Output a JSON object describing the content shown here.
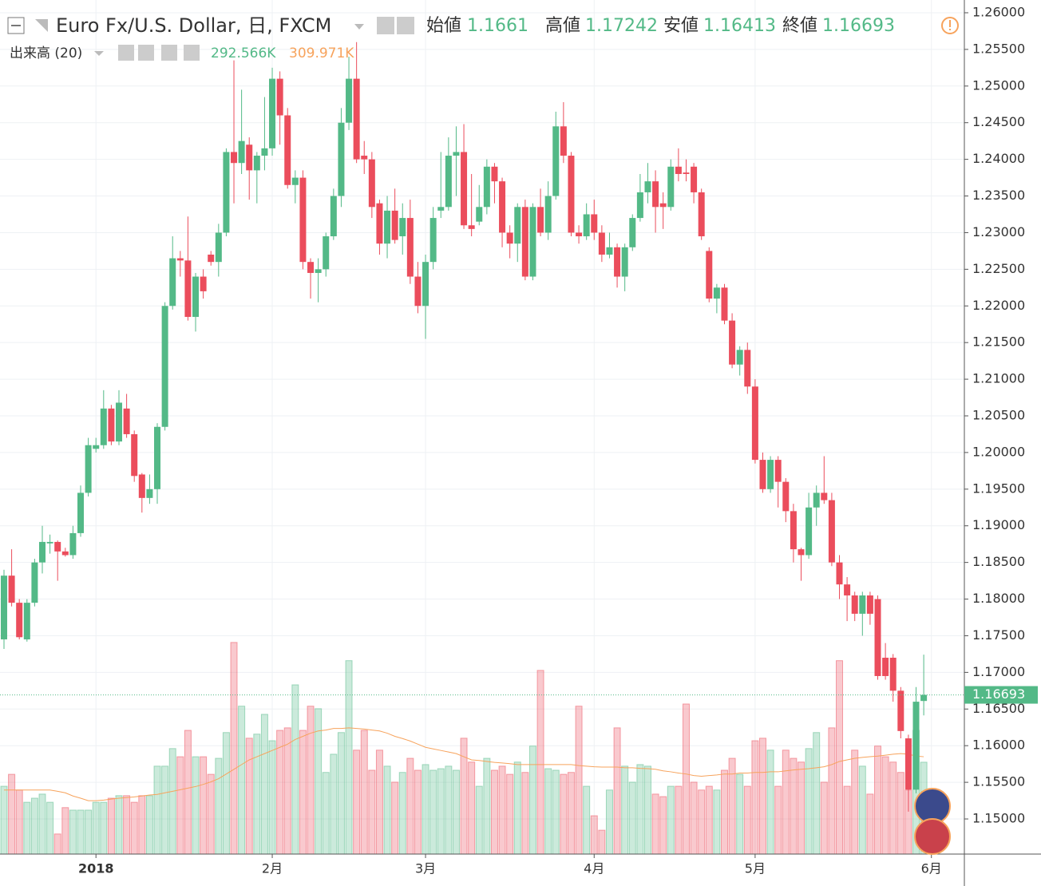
{
  "chart_data": {
    "type": "candlestick",
    "title": "Euro Fx/U.S. Dollar, 日, FXCM",
    "open_label": "始値",
    "high_label": "高値",
    "low_label": "安値",
    "close_label": "終値",
    "volume_title": "出来高 (20)",
    "volume_last_label": "292.566K",
    "volume_ma_last_label": "309.971K",
    "up_color": "#53b987",
    "down_color": "#eb4d5c",
    "ma_color": "#f7a35c",
    "open": [
      1.1745,
      1.1832,
      1.1795,
      1.1745,
      1.1795,
      1.185,
      1.1876,
      1.1878,
      1.1865,
      1.186,
      1.189,
      1.1945,
      1.2005,
      1.201,
      1.206,
      1.2015,
      1.206,
      1.2025,
      1.197,
      1.1938,
      1.195,
      1.2035,
      1.22,
      1.2265,
      1.2262,
      1.2185,
      1.224,
      1.227,
      1.226,
      1.23,
      1.241,
      1.2395,
      1.242,
      1.2385,
      1.2405,
      1.2415,
      1.251,
      1.246,
      1.2365,
      1.2375,
      1.226,
      1.2245,
      1.225,
      1.2295,
      1.235,
      1.245,
      1.251,
      1.2405,
      1.24,
      1.234,
      1.2285,
      1.233,
      1.2295,
      1.232,
      1.224,
      1.22,
      1.226,
      1.233,
      1.2335,
      1.2405,
      1.241,
      1.231,
      1.2315,
      1.2335,
      1.239,
      1.237,
      1.23,
      1.2285,
      1.2335,
      1.224,
      1.2335,
      1.23,
      1.235,
      1.2445,
      1.2405,
      1.23,
      1.2295,
      1.2325,
      1.23,
      1.227,
      1.228,
      1.224,
      1.228,
      1.232,
      1.2355,
      1.237,
      1.234,
      1.2335,
      1.239,
      1.2382,
      1.239,
      1.2355,
      1.2275,
      1.221,
      1.2225,
      1.218,
      1.212,
      1.214,
      1.209,
      1.199,
      1.195,
      1.199,
      1.196,
      1.192,
      1.1868,
      1.186,
      1.1925,
      1.1945,
      1.1935,
      1.185,
      1.182,
      1.1805,
      1.178,
      1.1805,
      1.18,
      1.172,
      1.172,
      1.1675,
      1.161,
      1.154,
      1.1661
    ],
    "high": [
      1.184,
      1.1868,
      1.18,
      1.18,
      1.1855,
      1.19,
      1.1888,
      1.188,
      1.187,
      1.19,
      1.1955,
      1.202,
      1.202,
      1.2085,
      1.2065,
      1.2085,
      1.208,
      1.203,
      1.1972,
      1.197,
      1.204,
      1.2205,
      1.2295,
      1.2275,
      1.2322,
      1.2245,
      1.225,
      1.2275,
      1.2312,
      1.2415,
      1.2535,
      1.2495,
      1.243,
      1.241,
      1.2485,
      1.2525,
      1.252,
      1.247,
      1.2385,
      1.2385,
      1.2265,
      1.2265,
      1.23,
      1.236,
      1.247,
      1.254,
      1.256,
      1.2425,
      1.241,
      1.2345,
      1.235,
      1.236,
      1.234,
      1.2345,
      1.226,
      1.227,
      1.2335,
      1.241,
      1.243,
      1.2445,
      1.2448,
      1.238,
      1.2365,
      1.24,
      1.2395,
      1.2375,
      1.231,
      1.234,
      1.2345,
      1.234,
      1.236,
      1.237,
      1.2465,
      1.2478,
      1.241,
      1.231,
      1.234,
      1.2345,
      1.231,
      1.23,
      1.2285,
      1.2285,
      1.2325,
      1.238,
      1.2395,
      1.2385,
      1.2355,
      1.24,
      1.2415,
      1.24,
      1.2395,
      1.236,
      1.228,
      1.223,
      1.223,
      1.219,
      1.2145,
      1.215,
      1.21,
      1.2,
      1.1995,
      1.1995,
      1.1965,
      1.193,
      1.187,
      1.1945,
      1.1955,
      1.1995,
      1.1945,
      1.186,
      1.183,
      1.181,
      1.181,
      1.181,
      1.1805,
      1.174,
      1.1725,
      1.168,
      1.1615,
      1.168,
      1.17242
    ],
    "low": [
      1.1732,
      1.179,
      1.1745,
      1.1742,
      1.179,
      1.1835,
      1.1862,
      1.1825,
      1.1858,
      1.1855,
      1.1885,
      1.194,
      1.2,
      1.2005,
      1.201,
      1.201,
      1.202,
      1.196,
      1.1918,
      1.193,
      1.193,
      1.203,
      1.2195,
      1.224,
      1.218,
      1.2165,
      1.221,
      1.2255,
      1.224,
      1.2295,
      1.234,
      1.238,
      1.2345,
      1.234,
      1.2385,
      1.2405,
      1.242,
      1.236,
      1.234,
      1.225,
      1.221,
      1.2205,
      1.224,
      1.229,
      1.2335,
      1.244,
      1.2395,
      1.238,
      1.232,
      1.227,
      1.2265,
      1.2285,
      1.227,
      1.223,
      1.219,
      1.2155,
      1.225,
      1.232,
      1.233,
      1.235,
      1.2305,
      1.2295,
      1.231,
      1.2325,
      1.234,
      1.228,
      1.2265,
      1.226,
      1.2235,
      1.2235,
      1.2295,
      1.229,
      1.2345,
      1.2395,
      1.2295,
      1.2285,
      1.229,
      1.229,
      1.226,
      1.2265,
      1.2225,
      1.222,
      1.2275,
      1.2315,
      1.234,
      1.23,
      1.2305,
      1.233,
      1.237,
      1.237,
      1.234,
      1.229,
      1.2205,
      1.219,
      1.2175,
      1.2115,
      1.2105,
      1.208,
      1.1985,
      1.1945,
      1.1945,
      1.1925,
      1.1905,
      1.185,
      1.1825,
      1.1855,
      1.19,
      1.193,
      1.1845,
      1.18,
      1.177,
      1.177,
      1.175,
      1.1765,
      1.169,
      1.169,
      1.166,
      1.161,
      1.151,
      1.1535,
      1.16413
    ],
    "close": [
      1.1832,
      1.1795,
      1.1748,
      1.1795,
      1.185,
      1.1878,
      1.1878,
      1.1865,
      1.186,
      1.189,
      1.1945,
      1.201,
      1.201,
      1.206,
      1.2015,
      1.2068,
      1.2025,
      1.1968,
      1.1938,
      1.195,
      1.2035,
      1.22,
      1.2265,
      1.2262,
      1.2185,
      1.224,
      1.222,
      1.226,
      1.23,
      1.241,
      1.2395,
      1.2425,
      1.2385,
      1.2405,
      1.2415,
      1.251,
      1.246,
      1.2365,
      1.2375,
      1.226,
      1.2245,
      1.225,
      1.2295,
      1.235,
      1.245,
      1.251,
      1.24,
      1.24,
      1.2335,
      1.2285,
      1.233,
      1.229,
      1.232,
      1.224,
      1.22,
      1.226,
      1.232,
      1.2335,
      1.2405,
      1.241,
      1.231,
      1.2305,
      1.2335,
      1.239,
      1.237,
      1.23,
      1.2285,
      1.2335,
      1.224,
      1.2335,
      1.23,
      1.235,
      1.2445,
      1.2405,
      1.23,
      1.2295,
      1.2325,
      1.23,
      1.227,
      1.228,
      1.224,
      1.228,
      1.232,
      1.2355,
      1.237,
      1.2335,
      1.2335,
      1.239,
      1.238,
      1.238,
      1.2355,
      1.2295,
      1.221,
      1.2225,
      1.218,
      1.212,
      1.214,
      1.209,
      1.199,
      1.195,
      1.199,
      1.196,
      1.192,
      1.1868,
      1.186,
      1.1925,
      1.1945,
      1.1935,
      1.185,
      1.182,
      1.1805,
      1.178,
      1.1805,
      1.178,
      1.1695,
      1.1695,
      1.1675,
      1.162,
      1.154,
      1.166,
      1.16693
    ],
    "volume": [
      216,
      254,
      204,
      165,
      178,
      191,
      165,
      64,
      148,
      140,
      140,
      140,
      165,
      165,
      178,
      186,
      186,
      165,
      186,
      186,
      280,
      280,
      336,
      310,
      394,
      310,
      310,
      254,
      305,
      387,
      674,
      471,
      369,
      382,
      445,
      361,
      394,
      402,
      539,
      394,
      471,
      463,
      260,
      318,
      387,
      616,
      331,
      394,
      267,
      331,
      280,
      229,
      260,
      305,
      267,
      285,
      267,
      272,
      280,
      267,
      369,
      293,
      216,
      305,
      267,
      280,
      254,
      293,
      260,
      344,
      585,
      272,
      267,
      254,
      260,
      471,
      216,
      122,
      76,
      204,
      402,
      280,
      229,
      285,
      280,
      191,
      183,
      216,
      216,
      478,
      229,
      204,
      216,
      204,
      267,
      305,
      254,
      216,
      361,
      369,
      331,
      216,
      331,
      305,
      293,
      336,
      387,
      229,
      402,
      616,
      216,
      331,
      280,
      191,
      344,
      310,
      293,
      260,
      204,
      394,
      292.566
    ],
    "volume_ma": [
      204,
      204,
      204,
      204,
      204,
      204,
      204,
      200,
      195,
      185,
      178,
      170,
      170,
      172,
      175,
      178,
      180,
      182,
      185,
      188,
      190,
      195,
      200,
      205,
      210,
      215,
      222,
      230,
      240,
      255,
      270,
      285,
      300,
      310,
      320,
      330,
      340,
      350,
      365,
      375,
      385,
      392,
      395,
      400,
      400,
      402,
      400,
      398,
      395,
      392,
      385,
      375,
      368,
      360,
      350,
      340,
      335,
      330,
      325,
      320,
      310,
      300,
      298,
      295,
      292,
      290,
      288,
      285,
      285,
      285,
      285,
      285,
      285,
      285,
      285,
      282,
      280,
      278,
      277,
      277,
      277,
      275,
      275,
      273,
      272,
      270,
      265,
      262,
      258,
      255,
      250,
      248,
      250,
      252,
      255,
      255,
      258,
      258,
      260,
      260,
      262,
      262,
      265,
      268,
      270,
      272,
      275,
      278,
      285,
      295,
      300,
      305,
      308,
      310,
      312,
      315,
      318,
      320,
      318,
      312,
      309.971
    ],
    "xlim": [
      -0.52,
      125.3
    ],
    "xticks": [
      {
        "value": 12,
        "label": "2018"
      },
      {
        "value": 35,
        "label": "2月"
      },
      {
        "value": 55,
        "label": "3月"
      },
      {
        "value": 77,
        "label": "4月"
      },
      {
        "value": 98,
        "label": "5月"
      },
      {
        "value": 121,
        "label": "6月"
      }
    ],
    "ylim": [
      1.14521,
      1.26174
    ],
    "yticks": [
      {
        "value": 1.15,
        "label": "1.15000"
      },
      {
        "value": 1.155,
        "label": "1.15500"
      },
      {
        "value": 1.16,
        "label": "1.16000"
      },
      {
        "value": 1.165,
        "label": "1.16500"
      },
      {
        "value": 1.17,
        "label": "1.17000"
      },
      {
        "value": 1.175,
        "label": "1.17500"
      },
      {
        "value": 1.18,
        "label": "1.18000"
      },
      {
        "value": 1.185,
        "label": "1.18500"
      },
      {
        "value": 1.19,
        "label": "1.19000"
      },
      {
        "value": 1.195,
        "label": "1.19500"
      },
      {
        "value": 1.2,
        "label": "1.20000"
      },
      {
        "value": 1.205,
        "label": "1.20500"
      },
      {
        "value": 1.21,
        "label": "1.21000"
      },
      {
        "value": 1.215,
        "label": "1.21500"
      },
      {
        "value": 1.22,
        "label": "1.22000"
      },
      {
        "value": 1.225,
        "label": "1.22500"
      },
      {
        "value": 1.23,
        "label": "1.23000"
      },
      {
        "value": 1.235,
        "label": "1.23500"
      },
      {
        "value": 1.24,
        "label": "1.24000"
      },
      {
        "value": 1.245,
        "label": "1.24500"
      },
      {
        "value": 1.25,
        "label": "1.25000"
      },
      {
        "value": 1.255,
        "label": "1.25500"
      },
      {
        "value": 1.26,
        "label": "1.26000"
      }
    ],
    "y2lim": [
      0,
      2720
    ],
    "grid": true
  }
}
